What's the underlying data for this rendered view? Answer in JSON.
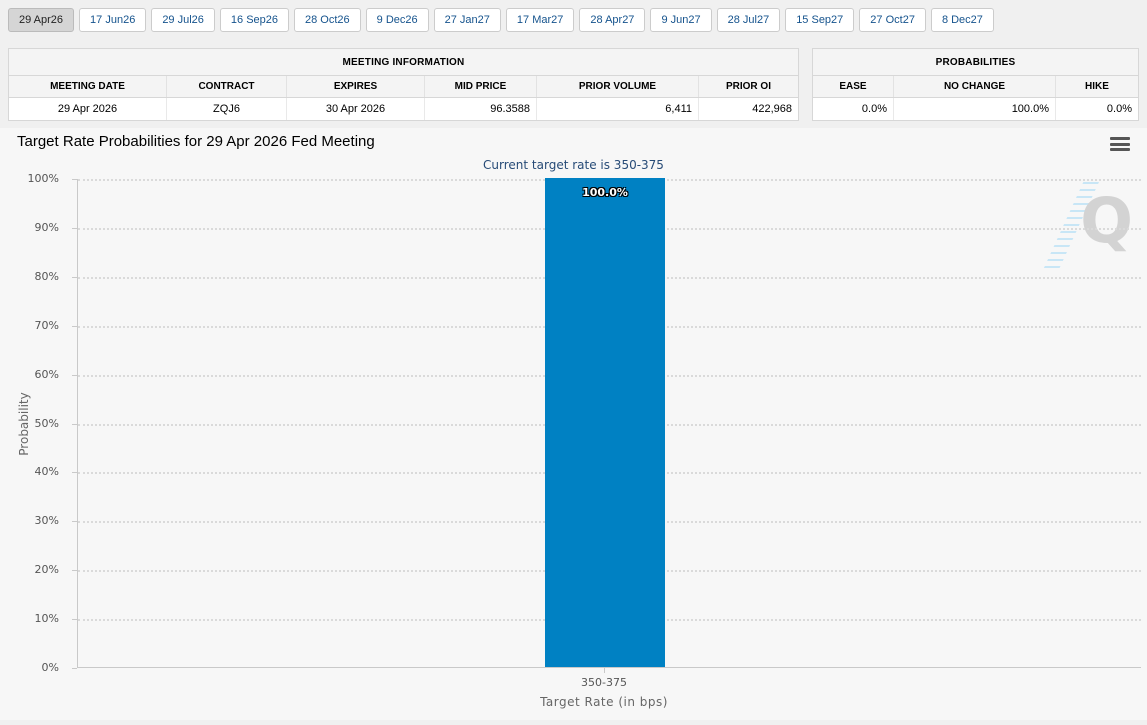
{
  "tabs": {
    "items": [
      {
        "label": "29 Apr26",
        "selected": true
      },
      {
        "label": "17 Jun26",
        "selected": false
      },
      {
        "label": "29 Jul26",
        "selected": false
      },
      {
        "label": "16 Sep26",
        "selected": false
      },
      {
        "label": "28 Oct26",
        "selected": false
      },
      {
        "label": "9 Dec26",
        "selected": false
      },
      {
        "label": "27 Jan27",
        "selected": false
      },
      {
        "label": "17 Mar27",
        "selected": false
      },
      {
        "label": "28 Apr27",
        "selected": false
      },
      {
        "label": "9 Jun27",
        "selected": false
      },
      {
        "label": "28 Jul27",
        "selected": false
      },
      {
        "label": "15 Sep27",
        "selected": false
      },
      {
        "label": "27 Oct27",
        "selected": false
      },
      {
        "label": "8 Dec27",
        "selected": false
      }
    ]
  },
  "meeting_info": {
    "title": "MEETING INFORMATION",
    "columns": [
      {
        "label": "MEETING DATE",
        "align": "center"
      },
      {
        "label": "CONTRACT",
        "align": "center"
      },
      {
        "label": "EXPIRES",
        "align": "center"
      },
      {
        "label": "MID PRICE",
        "align": "right"
      },
      {
        "label": "PRIOR VOLUME",
        "align": "right"
      },
      {
        "label": "PRIOR OI",
        "align": "right"
      }
    ],
    "row": [
      "29 Apr 2026",
      "ZQJ6",
      "30 Apr 2026",
      "96.3588",
      "6,411",
      "422,968"
    ]
  },
  "probabilities": {
    "title": "PROBABILITIES",
    "columns": [
      {
        "label": "EASE",
        "align": "right"
      },
      {
        "label": "NO CHANGE",
        "align": "right"
      },
      {
        "label": "HIKE",
        "align": "right"
      }
    ],
    "row": [
      "0.0%",
      "100.0%",
      "0.0%"
    ]
  },
  "chart_data": {
    "type": "bar",
    "title": "Target Rate Probabilities for 29 Apr 2026 Fed Meeting",
    "subtitle": "Current target rate is 350-375",
    "categories": [
      "350-375"
    ],
    "values": [
      100.0
    ],
    "value_labels": [
      "100.0%"
    ],
    "xlabel": "Target Rate (in bps)",
    "ylabel": "Probability",
    "ylim": [
      0,
      100
    ],
    "ytick_step": 10,
    "ytick_suffix": "%",
    "grid": "dotted-horizontal",
    "legend": "none",
    "bar_color": "#0081c3"
  },
  "icons": {
    "context_menu": "hamburger-menu-icon",
    "watermark_letter": "Q"
  }
}
